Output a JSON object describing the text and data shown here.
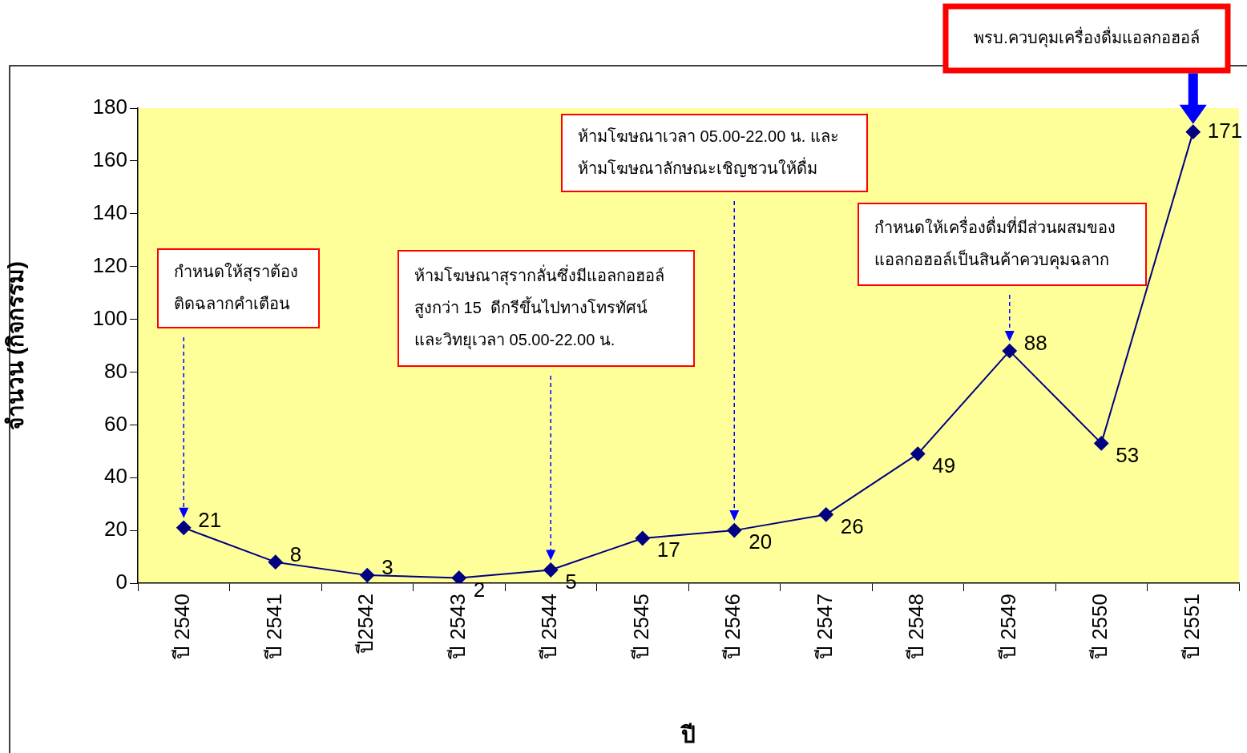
{
  "chart_data": {
    "type": "line",
    "xlabel": "ปี",
    "ylabel": "จำนวน (กิจกรรม)",
    "categories": [
      "ปี 2540",
      "ปี 2541",
      "ปี2542",
      "ปี 2543",
      "ปี 2544",
      "ปี 2545",
      "ปี 2546",
      "ปี 2547",
      "ปี 2548",
      "ปี 2549",
      "ปี 2550",
      "ปี 2551"
    ],
    "series": [
      {
        "color": "#000080",
        "values": [
          21,
          8,
          3,
          2,
          5,
          17,
          20,
          26,
          49,
          88,
          53,
          171
        ]
      }
    ],
    "ylim": [
      0,
      180
    ],
    "yticks": [
      0,
      20,
      40,
      60,
      80,
      100,
      120,
      140,
      160,
      180
    ],
    "marker": "diamond",
    "line_style": "solid",
    "data_labels": true,
    "legend": false,
    "grid": false,
    "annotations": [
      "กำหนดให้สุราต้อง\nติดฉลากคำเตือน",
      "ห้ามโฆษณาสุรากลั่นซึ่งมีแอลกอฮอล์\nสูงกว่า 15  ดีกรีขึ้นไปทางโทรทัศน์\nและวิทยุเวลา 05.00-22.00 น.",
      "ห้ามโฆษณาเวลา 05.00-22.00 น. และ\nห้ามโฆษณาลักษณะเชิญชวนให้ดื่ม",
      "กำหนดให้เครื่องดื่มที่มีส่วนผสมของ\nแอลกอฮอล์เป็นสินค้าควบคุมฉลาก",
      "พรบ.ควบคุมเครื่องดื่มแอลกอฮอล์"
    ]
  }
}
